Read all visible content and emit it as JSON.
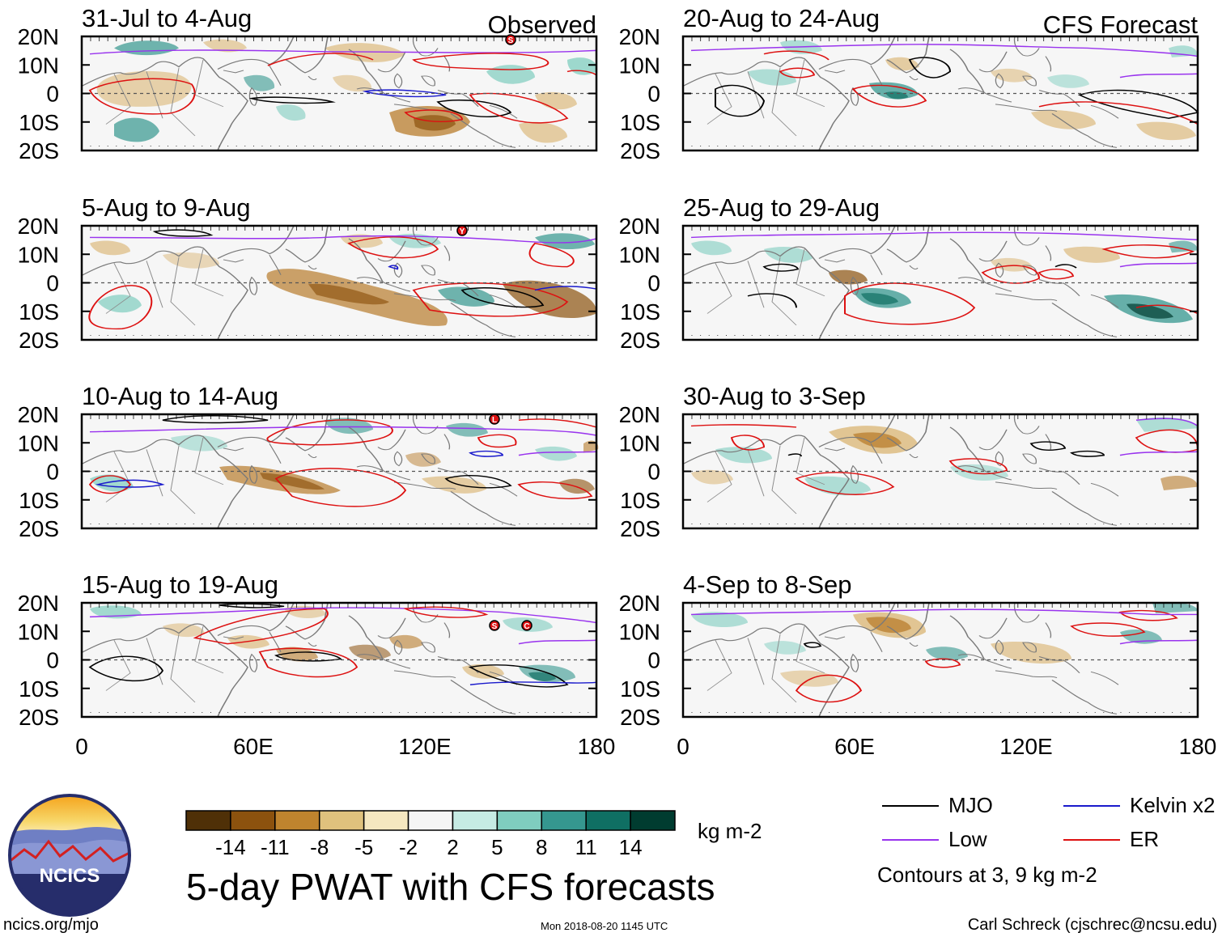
{
  "panel_labels": {
    "observed": "Observed",
    "forecast": "CFS Forecast"
  },
  "panels": [
    {
      "title": "31-Jul to 4-Aug",
      "kind": "observed"
    },
    {
      "title": "5-Aug to 9-Aug",
      "kind": "observed"
    },
    {
      "title": "10-Aug to 14-Aug",
      "kind": "observed"
    },
    {
      "title": "15-Aug to 19-Aug",
      "kind": "observed"
    },
    {
      "title": "20-Aug to 24-Aug",
      "kind": "forecast"
    },
    {
      "title": "25-Aug to 29-Aug",
      "kind": "forecast"
    },
    {
      "title": "30-Aug to 3-Sep",
      "kind": "forecast"
    },
    {
      "title": "4-Sep to 8-Sep",
      "kind": "forecast"
    }
  ],
  "axes": {
    "lat_labels": [
      "20N",
      "10N",
      "0",
      "10S",
      "20S"
    ],
    "lon_labels": [
      "0",
      "60E",
      "120E",
      "180"
    ]
  },
  "colorbar": {
    "tick_labels": [
      "-14",
      "-11",
      "-8",
      "-5",
      "-2",
      "2",
      "5",
      "8",
      "11",
      "14"
    ],
    "colors": [
      "#4f3007",
      "#8c520e",
      "#bf842e",
      "#dfc17d",
      "#f5e7c0",
      "#f5f5f5",
      "#c6ebe4",
      "#7fcdbf",
      "#35978f",
      "#0f6f63",
      "#003c30"
    ],
    "units": "kg m-2"
  },
  "legend": {
    "items": [
      {
        "label": "MJO",
        "color": "#000000"
      },
      {
        "label": "Kelvin x2",
        "color": "#1a1acc"
      },
      {
        "label": "Low",
        "color": "#9933ee"
      },
      {
        "label": "ER",
        "color": "#dd1111"
      }
    ],
    "note": "Contours at 3, 9 kg m-2"
  },
  "title": "5-day PWAT with CFS forecasts",
  "logo_text": "NCICS",
  "footer": {
    "left": "ncics.org/mjo",
    "center": "Mon 2018-08-20 1145 UTC",
    "right": "Carl Schreck (cjschrec@ncsu.edu)"
  },
  "storm_markers": [
    {
      "panel": 0,
      "letter": "S"
    },
    {
      "panel": 1,
      "letter": "Y"
    },
    {
      "panel": 2,
      "letter": "L"
    },
    {
      "panel": 3,
      "letter": "S"
    },
    {
      "panel": 3,
      "letter": "C"
    }
  ]
}
